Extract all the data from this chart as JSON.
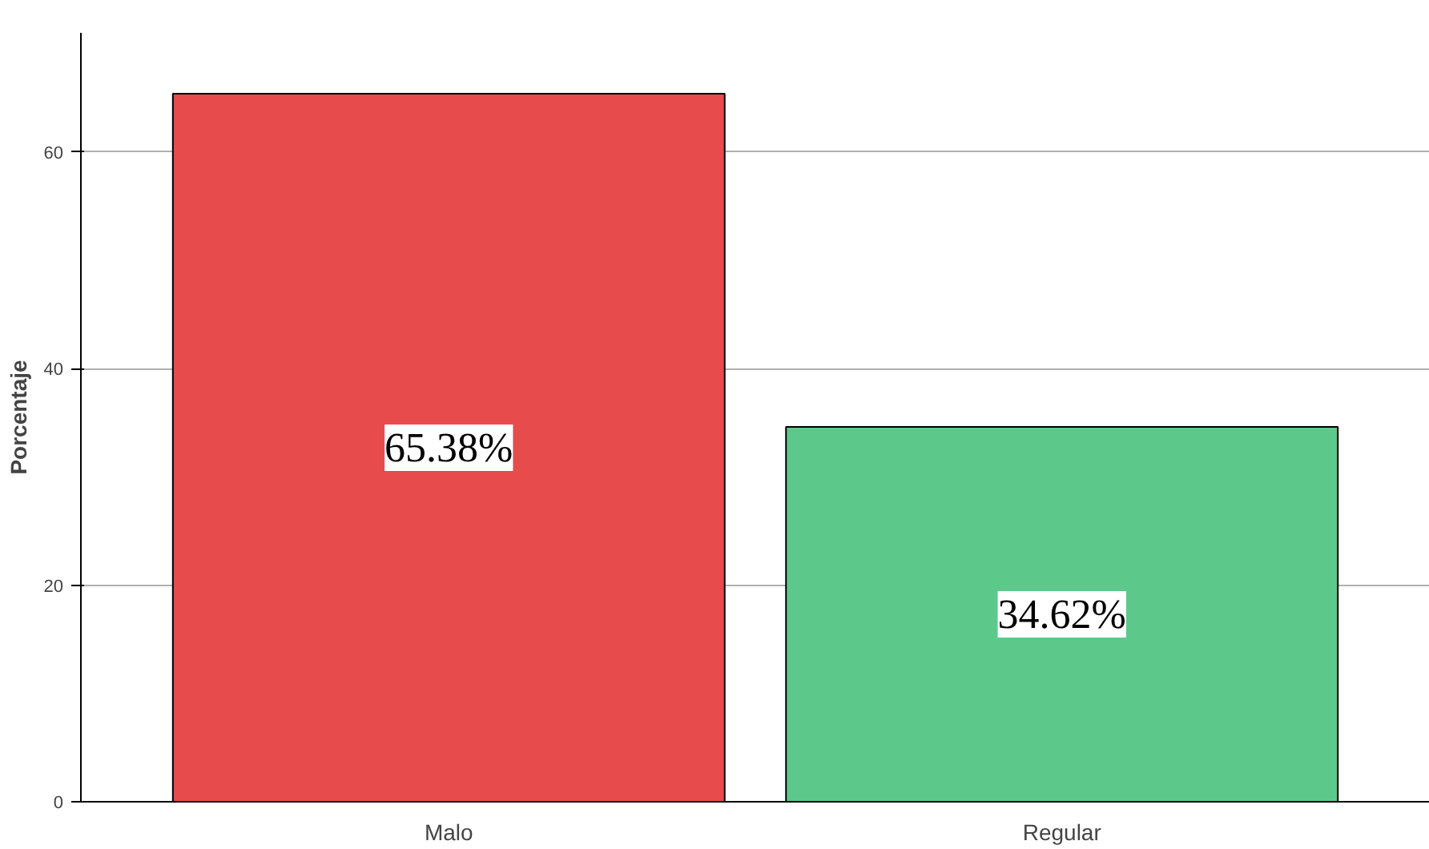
{
  "chart_data": {
    "type": "bar",
    "ylabel": "Porcentaje",
    "categories": [
      "Malo",
      "Regular"
    ],
    "values": [
      65.38,
      34.62
    ],
    "colors": [
      "#e84b4c",
      "#5cc98b"
    ],
    "value_labels": [
      "65.38%",
      "34.62%"
    ],
    "ylim": [
      0,
      71
    ],
    "yticks": [
      0,
      20,
      40,
      60
    ],
    "grid": "y"
  }
}
